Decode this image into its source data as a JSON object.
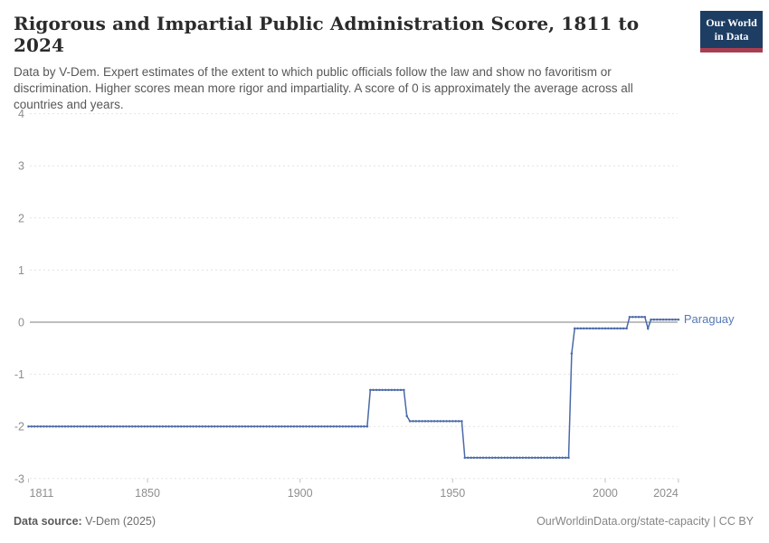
{
  "header": {
    "title": "Rigorous and Impartial Public Administration Score, 1811 to 2024",
    "subtitle": "Data by V-Dem. Expert estimates of the extent to which public officials follow the law and show no favoritism or discrimination. Higher scores mean more rigor and impartiality. A score of 0 is approximately the average across all countries and years.",
    "logo": {
      "line1": "Our World",
      "line2": "in Data",
      "bg_color": "#1d3d63",
      "accent_color": "#a73e52"
    }
  },
  "chart_data": {
    "type": "line",
    "entity": "Paraguay",
    "title": "Rigorous and Impartial Public Administration Score, 1811 to 2024",
    "xlabel": "",
    "ylabel": "",
    "xlim": [
      1811,
      2024
    ],
    "ylim": [
      -3,
      4
    ],
    "x_ticks": [
      1811,
      1850,
      1900,
      1950,
      2000,
      2024
    ],
    "y_ticks": [
      4,
      3,
      2,
      1,
      0,
      -1,
      -2,
      -3
    ],
    "grid": true,
    "legend_position": "end-of-line-label",
    "line_color": "#4a6aa8",
    "label_color": "#5778b5",
    "zero_line_color": "#a8a8a8",
    "grid_color": "#e3e3e3",
    "axis_text_color": "#8e8e8e",
    "marker_every_year": true,
    "segments": [
      {
        "from": 1811,
        "to": 1922,
        "value": -2.0
      },
      {
        "from": 1923,
        "to": 1934,
        "value": -1.3
      },
      {
        "from": 1935,
        "to": 1935,
        "value": -1.8
      },
      {
        "from": 1936,
        "to": 1953,
        "value": -1.9
      },
      {
        "from": 1954,
        "to": 1988,
        "value": -2.6
      },
      {
        "from": 1989,
        "to": 1989,
        "value": -0.6
      },
      {
        "from": 1990,
        "to": 2007,
        "value": -0.12
      },
      {
        "from": 2008,
        "to": 2013,
        "value": 0.1
      },
      {
        "from": 2014,
        "to": 2014,
        "value": -0.12
      },
      {
        "from": 2015,
        "to": 2024,
        "value": 0.05
      }
    ]
  },
  "footer": {
    "source_label": "Data source:",
    "source_value": "V-Dem (2025)",
    "url_note": "OurWorldinData.org/state-capacity | CC BY"
  }
}
